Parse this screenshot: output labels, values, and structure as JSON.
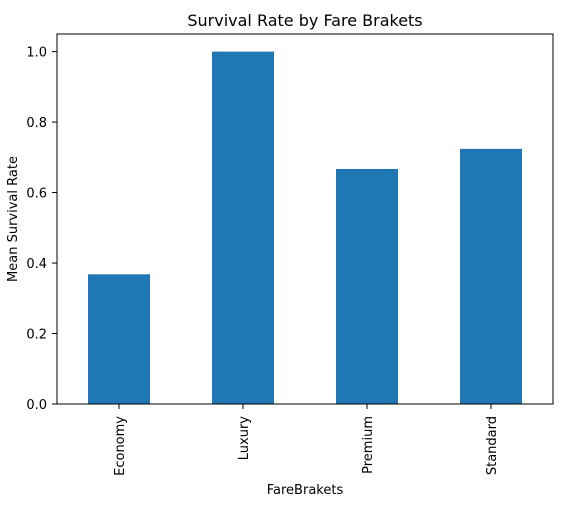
{
  "chart_data": {
    "type": "bar",
    "title": "Survival Rate by Fare Brakets",
    "xlabel": "FareBrakets",
    "ylabel": "Mean Survival Rate",
    "categories": [
      "Economy",
      "Luxury",
      "Premium",
      "Standard"
    ],
    "values": [
      0.368,
      1.0,
      0.667,
      0.724
    ],
    "ylim": [
      0,
      1.05
    ],
    "yticks": [
      "0.0",
      "0.2",
      "0.4",
      "0.6",
      "0.8",
      "1.0"
    ],
    "grid": false,
    "bar_color": "#1f77b4"
  }
}
